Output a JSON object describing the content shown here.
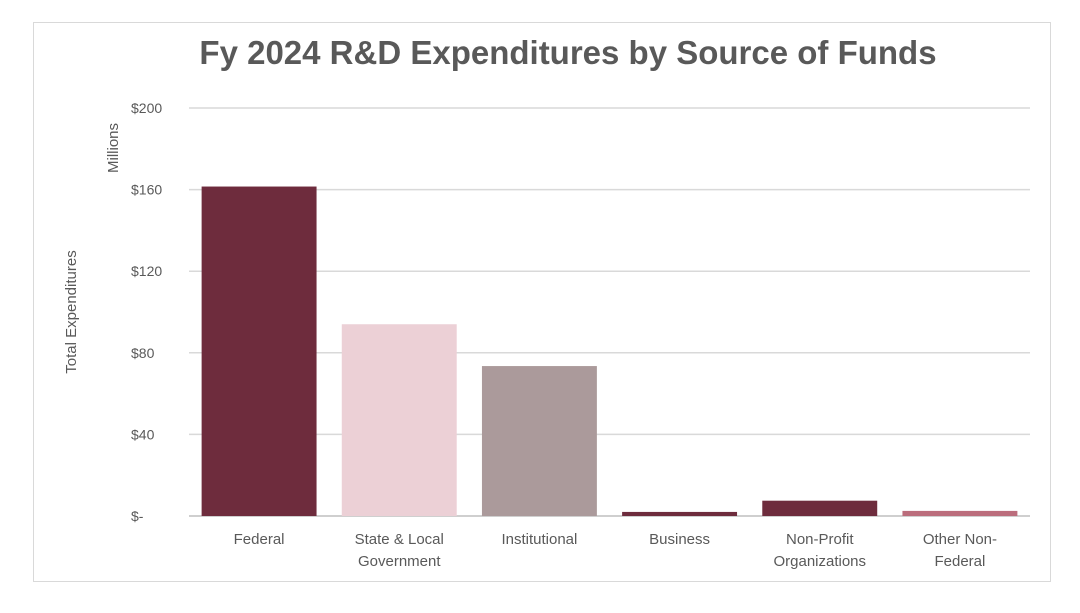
{
  "chart_data": {
    "type": "bar",
    "title": "Fy 2024 R&D Expenditures by Source of Funds",
    "xlabel": "",
    "ylabel": "Total Expenditures",
    "yunit_label": "Millions",
    "categories": [
      [
        "Federal"
      ],
      [
        "State & Local",
        "Government"
      ],
      [
        "Institutional"
      ],
      [
        "Business"
      ],
      [
        "Non-Profit",
        "Organizations"
      ],
      [
        "Other Non-",
        "Federal"
      ]
    ],
    "values": [
      161.5,
      94,
      73.5,
      2,
      7.5,
      2.5
    ],
    "bar_colors": [
      "#6e2c3d",
      "#ecd0d6",
      "#ab9a9b",
      "#6e2c3d",
      "#6e2c3d",
      "#bb6d7c"
    ],
    "ylim": [
      0,
      200
    ],
    "yticks": [
      0,
      40,
      80,
      120,
      160,
      200
    ],
    "ytick_labels": [
      "$-",
      "$40",
      "$80",
      "$120",
      "$160",
      "$200"
    ],
    "grid": true,
    "legend": "none"
  }
}
